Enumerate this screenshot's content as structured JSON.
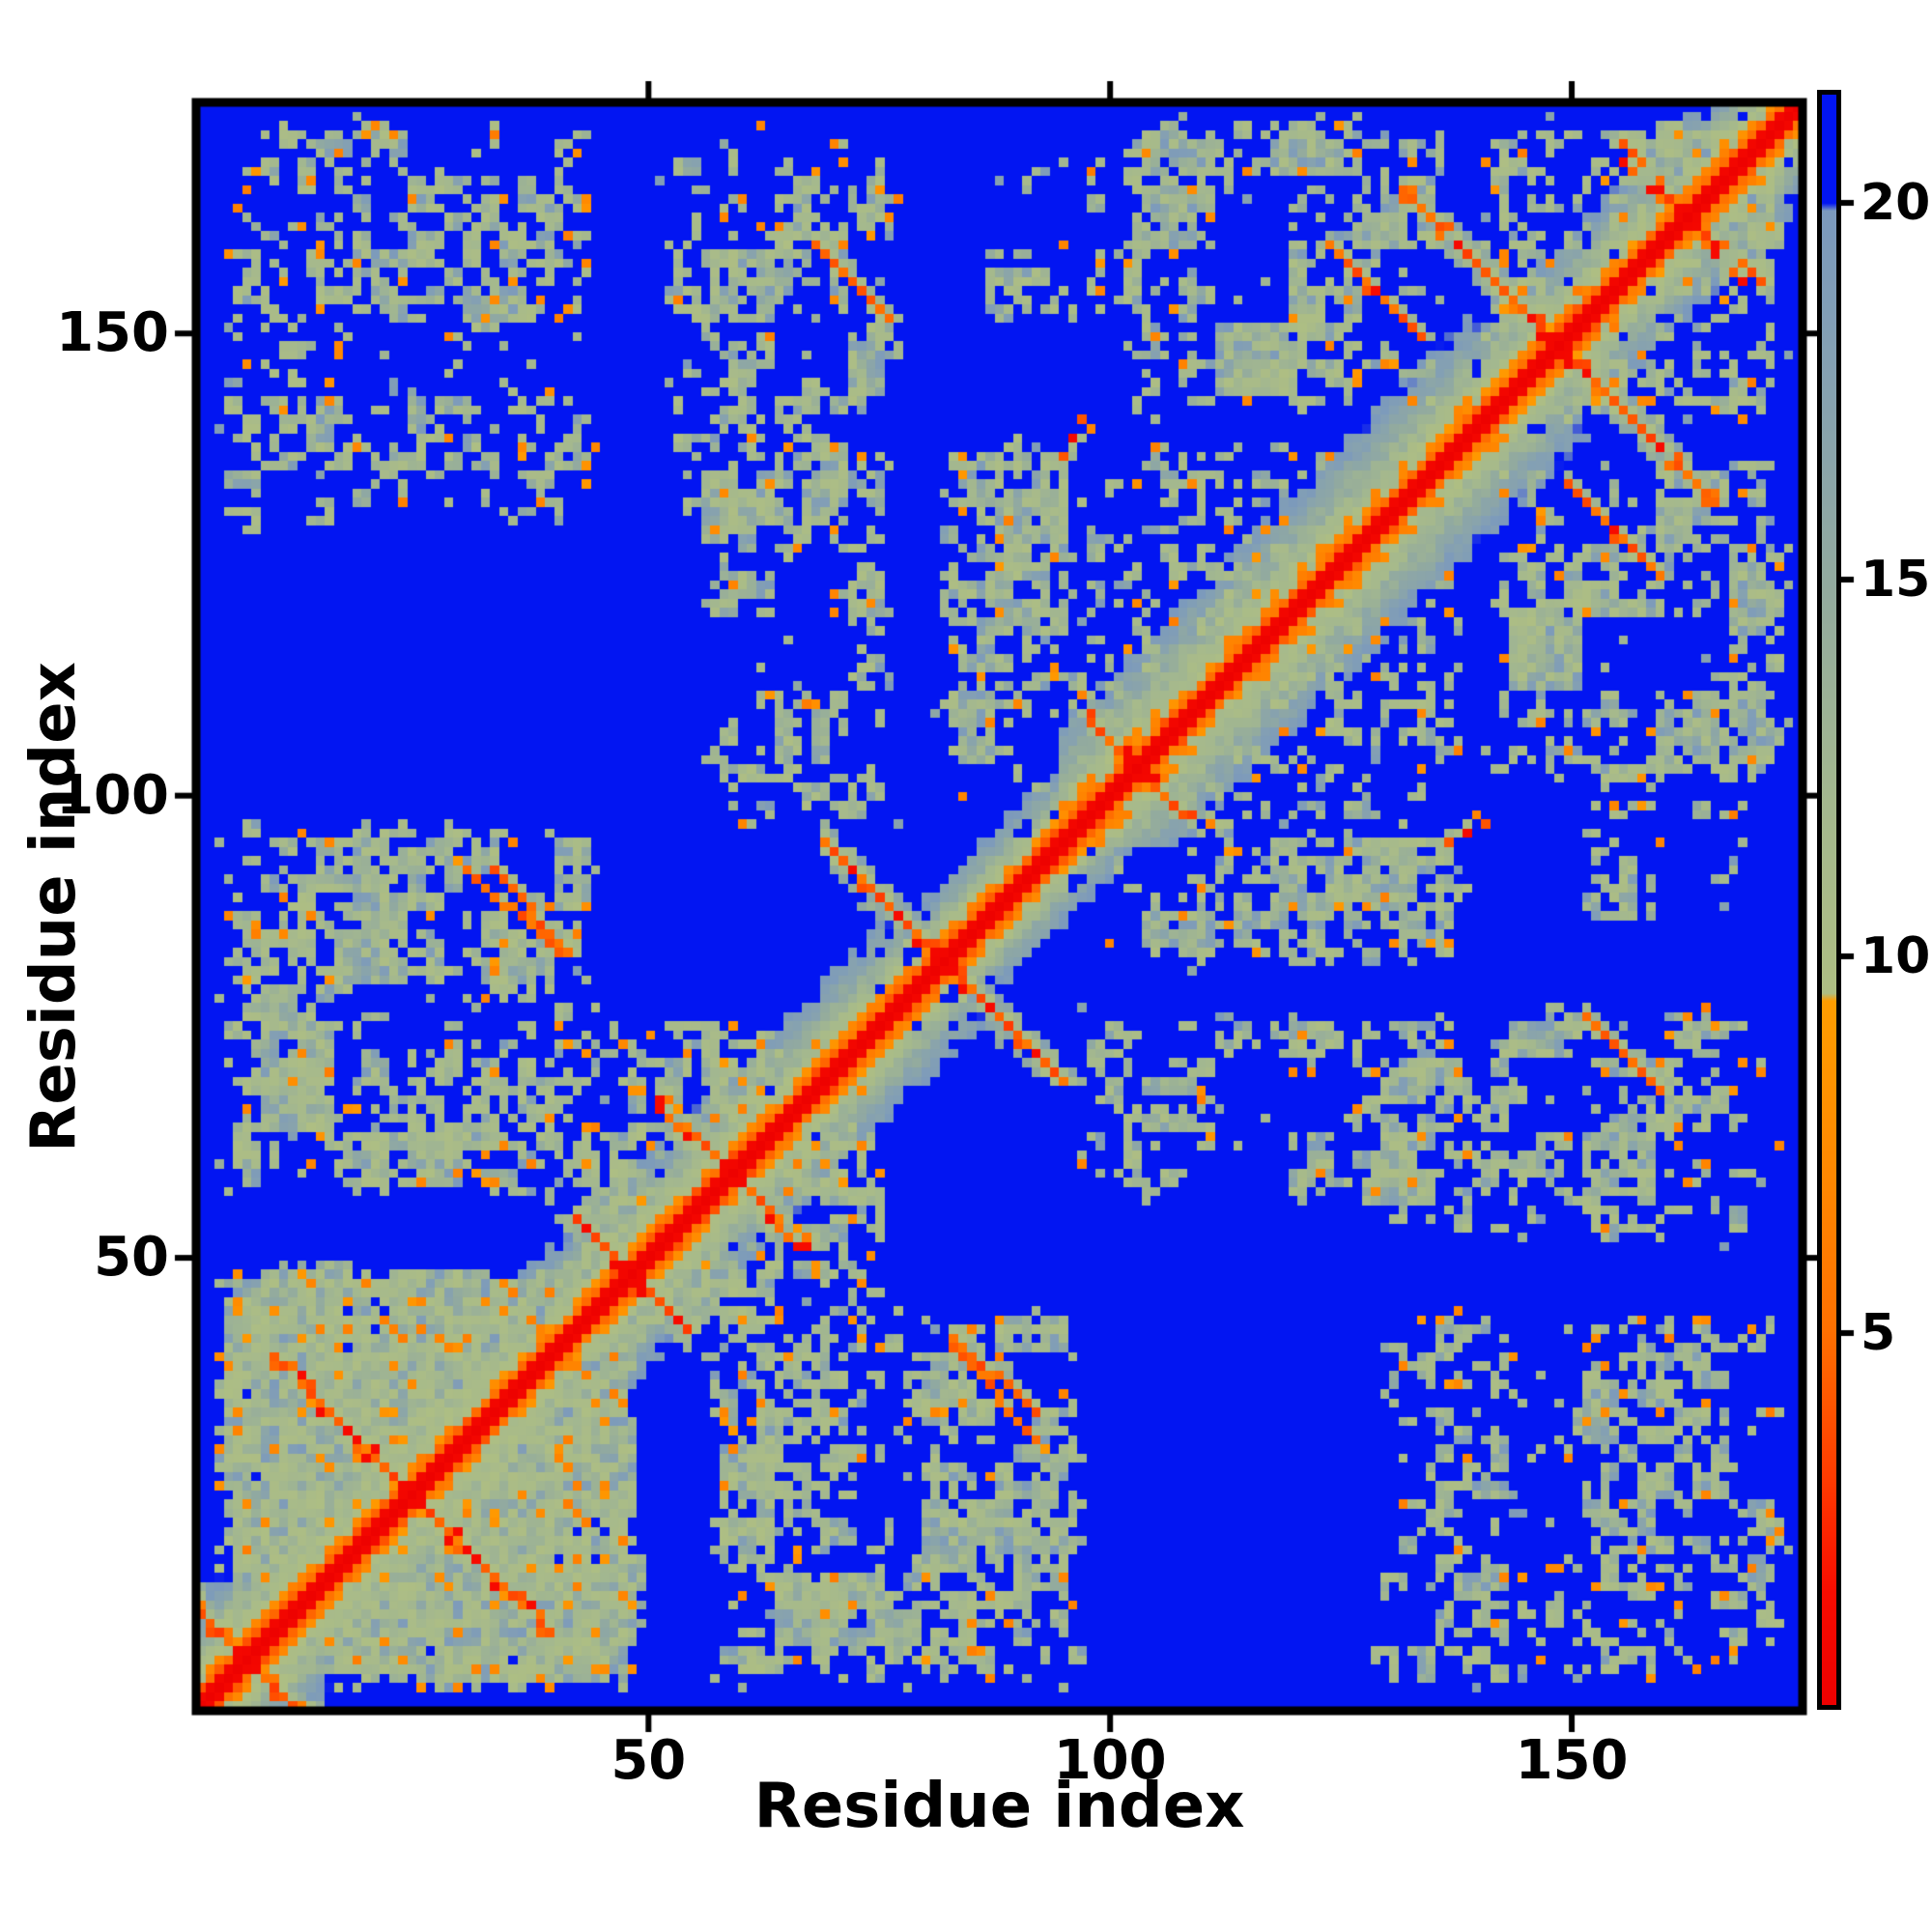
{
  "chart_data": {
    "type": "heatmap",
    "title": "",
    "xlabel": "Residue index",
    "ylabel": "Residue index",
    "x_range": [
      1,
      175
    ],
    "y_range": [
      1,
      175
    ],
    "grid": false,
    "x_ticks": [
      {
        "value": 50,
        "label": "50"
      },
      {
        "value": 100,
        "label": "100"
      },
      {
        "value": 150,
        "label": "150"
      }
    ],
    "y_ticks": [
      {
        "value": 50,
        "label": "50"
      },
      {
        "value": 100,
        "label": "100"
      },
      {
        "value": 150,
        "label": "150"
      }
    ],
    "colorbar": {
      "position": "right",
      "vmin": 0,
      "vmax": 21.5,
      "ticks": [
        {
          "value": 5,
          "label": "5"
        },
        {
          "value": 10,
          "label": "10"
        },
        {
          "value": 15,
          "label": "15"
        },
        {
          "value": 20,
          "label": "20"
        }
      ]
    },
    "colors": {
      "background_blue": "#0215f2",
      "pale_steel": "#84a0b3",
      "pale_sage": "#a4b88e",
      "contact_orange": "#ff8700",
      "diagonal_red": "#ed0000",
      "frame_black": "#000000",
      "figure_background": "#ffffff"
    },
    "colormap_stops": [
      [
        0.0,
        "#ed0000"
      ],
      [
        1.5,
        "#f80c00"
      ],
      [
        3.0,
        "#ff3a00"
      ],
      [
        5.0,
        "#ff7000"
      ],
      [
        7.0,
        "#ff8700"
      ],
      [
        9.4,
        "#ff9d00"
      ],
      [
        9.5,
        "#aebe83"
      ],
      [
        12.0,
        "#a4b88e"
      ],
      [
        15.0,
        "#92aa9f"
      ],
      [
        18.0,
        "#84a0b3"
      ],
      [
        19.95,
        "#7b99bd"
      ],
      [
        20.05,
        "#0215f2"
      ],
      [
        21.5,
        "#0215f2"
      ]
    ],
    "matrix": {
      "n": 175,
      "seed": 7,
      "background_value": 21.5,
      "symmetric": true,
      "diagonal_value": 0.2,
      "features": {
        "halos": [
          [
            1,
            40,
            8,
            "sheet"
          ],
          [
            40,
            77,
            7,
            "mixed"
          ],
          [
            77,
            95,
            5,
            "mixed"
          ],
          [
            95,
            139,
            9,
            "helix"
          ],
          [
            139,
            175,
            7,
            "mixed"
          ]
        ],
        "hairpins": [
          [
            6,
            6
          ],
          [
            24,
            15
          ],
          [
            48,
            6
          ],
          [
            59,
            8
          ],
          [
            82,
            13
          ],
          [
            103,
            5
          ],
          [
            149,
            17
          ],
          [
            163,
            7
          ]
        ],
        "clouds": [
          [
            2,
            50,
            2,
            50,
            0.6
          ],
          [
            140,
            175,
            140,
            175,
            0.5
          ],
          [
            40,
            77,
            40,
            77,
            0.35
          ],
          [
            2,
            45,
            55,
            98,
            0.5
          ],
          [
            2,
            45,
            128,
            175,
            0.34
          ],
          [
            50,
            78,
            125,
            172,
            0.42
          ],
          [
            55,
            78,
            95,
            127,
            0.38
          ],
          [
            80,
            98,
            98,
            140,
            0.42
          ],
          [
            100,
            138,
            140,
            175,
            0.4
          ],
          [
            85,
            102,
            148,
            170,
            0.34
          ],
          [
            95,
            140,
            95,
            140,
            0.22
          ]
        ],
        "streaks": [
          [
            30,
            92,
            40,
            83
          ],
          [
            83,
            41,
            92,
            33
          ],
          [
            124,
            160,
            134,
            150
          ],
          [
            68,
            160,
            74,
            154
          ],
          [
            72,
            156,
            76,
            152
          ]
        ],
        "spots": [
          [
            4,
            87,
            "o"
          ],
          [
            13,
            87,
            "o"
          ],
          [
            13,
            60,
            "o"
          ],
          [
            25,
            58,
            "o"
          ],
          [
            34,
            62,
            "o"
          ],
          [
            43,
            158,
            "o"
          ],
          [
            33,
            160,
            "o"
          ],
          [
            15,
            143,
            "o"
          ],
          [
            58,
            163,
            "o"
          ],
          [
            60,
            165,
            "o"
          ],
          [
            62,
            162,
            "o"
          ],
          [
            72,
            156,
            "o"
          ],
          [
            70,
            120,
            "o"
          ],
          [
            70,
            122,
            "o"
          ],
          [
            60,
            97,
            "o"
          ],
          [
            84,
            100,
            "o"
          ],
          [
            90,
            110,
            "o"
          ],
          [
            96,
            139,
            "r"
          ],
          [
            97,
            141,
            "d"
          ],
          [
            95,
            137,
            "d"
          ],
          [
            98,
            140,
            "o"
          ],
          [
            105,
            150,
            "o"
          ],
          [
            115,
            168,
            "o"
          ],
          [
            130,
            147,
            "o"
          ],
          [
            128,
            155,
            "d"
          ],
          [
            62,
            173,
            "o"
          ],
          [
            70,
            171,
            "o"
          ],
          [
            95,
            160,
            "o"
          ],
          [
            99,
            155,
            "o"
          ],
          [
            28,
            150,
            "o"
          ]
        ]
      }
    }
  }
}
